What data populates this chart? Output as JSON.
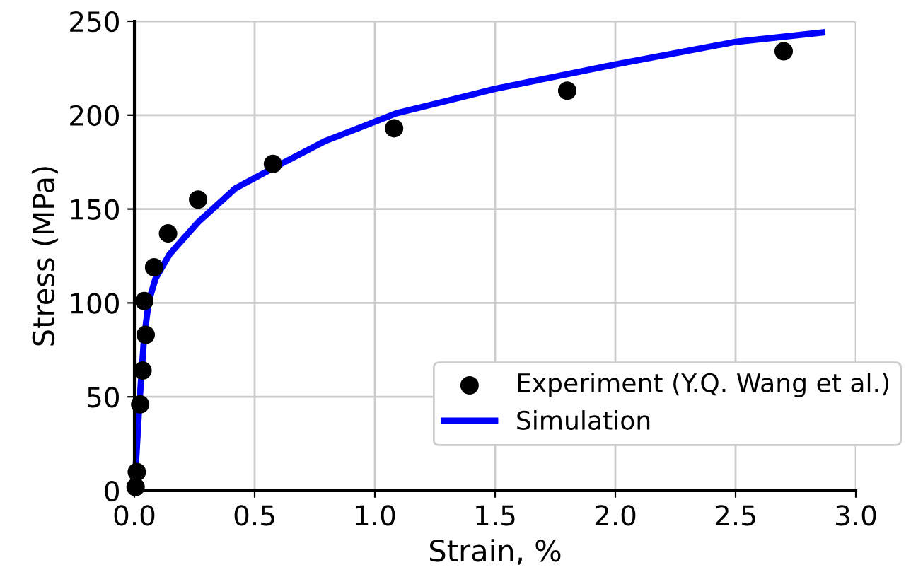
{
  "chart_data": {
    "type": "scatter",
    "xlabel": "Strain, %",
    "ylabel": "Stress (MPa)",
    "xlim": [
      0,
      3
    ],
    "ylim": [
      0,
      250
    ],
    "xticks": [
      {
        "value": 0,
        "label": "0.0"
      },
      {
        "value": 0.5,
        "label": "0.5"
      },
      {
        "value": 1,
        "label": "1.0"
      },
      {
        "value": 1.5,
        "label": "1.5"
      },
      {
        "value": 2,
        "label": "2.0"
      },
      {
        "value": 2.5,
        "label": "2.5"
      },
      {
        "value": 3,
        "label": "3.0"
      }
    ],
    "yticks": [
      0,
      50,
      100,
      150,
      200,
      250
    ],
    "grid": true,
    "legend": "bottom right",
    "series": [
      {
        "name": "Experiment (Y.Q. Wang et al.)",
        "marker": "circle",
        "color": "#000000",
        "x": [
          0.005,
          0.01,
          0.024,
          0.034,
          0.047,
          0.041,
          0.082,
          0.14,
          0.265,
          0.576,
          1.08,
          1.8,
          2.7
        ],
        "values": [
          2,
          10,
          46,
          64,
          83,
          101,
          119,
          137,
          155,
          174,
          193,
          213,
          234
        ]
      },
      {
        "name": "Simulation",
        "type": "line",
        "marker": "none",
        "line_style": "solid",
        "color": "#0000ff",
        "x": [
          0,
          0.02,
          0.04,
          0.06,
          0.088,
          0.147,
          0.265,
          0.42,
          0.58,
          0.79,
          1.09,
          1.28,
          1.5,
          2.0,
          2.5,
          2.86
        ],
        "values": [
          0,
          45,
          81,
          101,
          113,
          126,
          143,
          161,
          172,
          186,
          201,
          207,
          214,
          227,
          239,
          244
        ]
      }
    ]
  }
}
